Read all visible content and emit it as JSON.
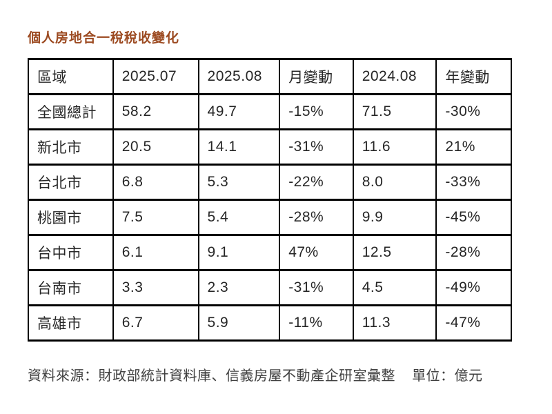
{
  "title": "個人房地合一稅稅收變化",
  "title_color": "#9C4A21",
  "table": {
    "headers": [
      "區域",
      "2025.07",
      "2025.08",
      "月變動",
      "2024.08",
      "年變動"
    ],
    "rows": [
      [
        "全國總計",
        "58.2",
        "49.7",
        "-15%",
        "71.5",
        "-30%"
      ],
      [
        "新北市",
        "20.5",
        "14.1",
        "-31%",
        "11.6",
        "21%"
      ],
      [
        "台北市",
        "6.8",
        "5.3",
        "-22%",
        "8.0",
        "-33%"
      ],
      [
        "桃園市",
        "7.5",
        "5.4",
        "-28%",
        "9.9",
        "-45%"
      ],
      [
        "台中市",
        "6.1",
        "9.1",
        "47%",
        "12.5",
        "-28%"
      ],
      [
        "台南市",
        "3.3",
        "2.3",
        "-31%",
        "4.5",
        "-49%"
      ],
      [
        "高雄市",
        "6.7",
        "5.9",
        "-11%",
        "11.3",
        "-47%"
      ]
    ]
  },
  "footer": {
    "source": "資料來源：財政部統計資料庫、信義房屋不動產企研室彙整",
    "unit": "單位：億元"
  },
  "chart_data": {
    "type": "table",
    "title": "個人房地合一稅稅收變化",
    "columns": [
      "區域",
      "2025.07",
      "2025.08",
      "月變動",
      "2024.08",
      "年變動"
    ],
    "regions": [
      "全國總計",
      "新北市",
      "台北市",
      "桃園市",
      "台中市",
      "台南市",
      "高雄市"
    ],
    "series": [
      {
        "name": "2025.07",
        "values": [
          58.2,
          20.5,
          6.8,
          7.5,
          6.1,
          3.3,
          6.7
        ]
      },
      {
        "name": "2025.08",
        "values": [
          49.7,
          14.1,
          5.3,
          5.4,
          9.1,
          2.3,
          5.9
        ]
      },
      {
        "name": "月變動",
        "values": [
          "-15%",
          "-31%",
          "-22%",
          "-28%",
          "47%",
          "-31%",
          "-11%"
        ]
      },
      {
        "name": "2024.08",
        "values": [
          71.5,
          11.6,
          8.0,
          9.9,
          12.5,
          4.5,
          11.3
        ]
      },
      {
        "name": "年變動",
        "values": [
          "-30%",
          "21%",
          "-33%",
          "-45%",
          "-28%",
          "-49%",
          "-47%"
        ]
      }
    ],
    "unit": "億元",
    "source": "財政部統計資料庫、信義房屋不動產企研室彙整"
  }
}
